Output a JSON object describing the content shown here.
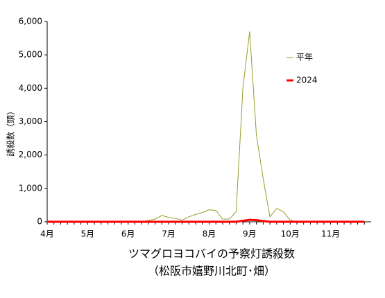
{
  "chart_data": {
    "type": "line",
    "title": "ツマグロヨコバイの予察灯誘殺数",
    "subtitle": "（松阪市嬉野川北町･畑）",
    "y_label": "誘殺数（頭）",
    "categories": [
      "4月",
      null,
      null,
      null,
      null,
      null,
      "5月",
      null,
      null,
      null,
      null,
      null,
      "6月",
      null,
      null,
      null,
      null,
      null,
      "7月",
      null,
      null,
      null,
      null,
      null,
      "8月",
      null,
      null,
      null,
      null,
      null,
      "9月",
      null,
      null,
      null,
      null,
      null,
      "10月",
      null,
      null,
      null,
      null,
      null,
      "11月",
      null,
      null,
      null,
      null,
      null
    ],
    "series": [
      {
        "name": "平年",
        "color": "#9a9a2a",
        "width": 1,
        "values": [
          0,
          0,
          0,
          0,
          0,
          0,
          0,
          0,
          0,
          0,
          0,
          0,
          0,
          0,
          0,
          40,
          80,
          190,
          130,
          100,
          50,
          150,
          220,
          280,
          360,
          340,
          80,
          80,
          300,
          4000,
          5700,
          2600,
          1300,
          150,
          400,
          300,
          50,
          0,
          0,
          0,
          0,
          0,
          0,
          0,
          0,
          0,
          0,
          0
        ]
      },
      {
        "name": "2024",
        "color": "#ff0000",
        "width": 3,
        "values": [
          0,
          0,
          0,
          0,
          0,
          0,
          0,
          0,
          0,
          0,
          0,
          0,
          0,
          0,
          0,
          0,
          0,
          0,
          0,
          0,
          0,
          0,
          0,
          0,
          0,
          0,
          0,
          0,
          0,
          30,
          60,
          50,
          20,
          0,
          0,
          0,
          0,
          0,
          0,
          0,
          0,
          0,
          0,
          0,
          0,
          0,
          0,
          0
        ]
      }
    ],
    "ylim": [
      0,
      6000
    ],
    "yticks": [
      0,
      {
        "value": 1000,
        "label": "1,000"
      },
      {
        "value": 2000,
        "label": "2,000"
      },
      {
        "value": 3000,
        "label": "3,000"
      },
      {
        "value": 4000,
        "label": "4,000"
      },
      {
        "value": 5000,
        "label": "5,000"
      },
      {
        "value": 6000,
        "label": "6,000"
      }
    ],
    "legend": "right"
  }
}
